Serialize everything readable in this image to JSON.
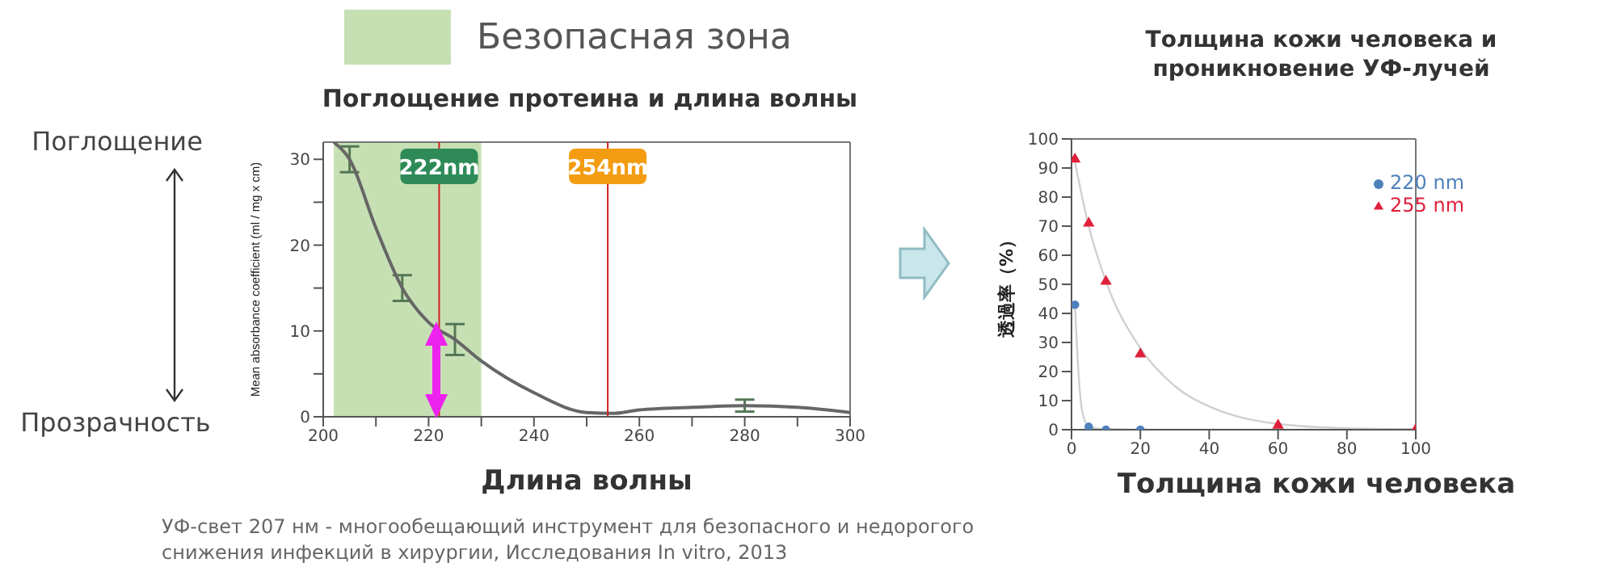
{
  "chart_data": [
    {
      "type": "line",
      "title": "Поглощение протеина и длина волны",
      "xlabel": "Длина волны",
      "ylabel": "Mean absorbance coefficient (ml / mg x cm)",
      "annotations": [
        "Поглощение",
        "Прозрачность",
        "УФ-свет 207 нм - многообещающий инструмент для безопасного и недорогого снижения инфекций в хирургии, Исследования  In vitro, 2013"
      ],
      "series": [
        {
          "color": "#666666",
          "x": [
            202,
            205,
            210,
            215,
            220,
            225,
            230,
            240,
            250,
            255,
            260,
            270,
            280,
            290,
            300
          ],
          "values": [
            32,
            30,
            22,
            15,
            11,
            9,
            6.5,
            2.8,
            0.5,
            0.4,
            0.8,
            1.1,
            1.3,
            1.1,
            0.5
          ],
          "errors": [
            null,
            1.5,
            null,
            1.5,
            null,
            1.8,
            null,
            null,
            null,
            null,
            null,
            null,
            0.7,
            null,
            null
          ]
        }
      ],
      "xlim": [
        200,
        300
      ],
      "xticks": [
        200,
        {
          "value": 210,
          "label": null
        },
        220,
        {
          "value": 230,
          "label": null
        },
        240,
        {
          "value": 250,
          "label": null
        },
        260,
        {
          "value": 270,
          "label": null
        },
        280,
        {
          "value": 290,
          "label": null
        },
        300
      ],
      "ylim": [
        0,
        32
      ],
      "yticks": [
        0,
        {
          "value": 5,
          "label": null
        },
        10,
        {
          "value": 15,
          "label": null
        },
        20,
        {
          "value": 25,
          "label": null
        },
        30
      ],
      "bands": [
        {
          "axis": "x",
          "from": 202,
          "to": 230,
          "label": "Безопасная зона",
          "color": "#c6e0b4"
        }
      ],
      "ref_lines": [
        {
          "axis": "x",
          "value": 222,
          "label": "222nm",
          "color": "#d02020"
        },
        {
          "axis": "x",
          "value": 254,
          "label": "254nm",
          "color": "#d02020"
        }
      ],
      "marker": "none",
      "grid": false
    },
    {
      "type": "scatter",
      "title": "Толщина кожи человека и проникновение УФ-лучей",
      "xlabel": "Толщина кожи человека",
      "ylabel": "透過率（%）",
      "x": [
        1,
        5,
        10,
        20,
        60,
        100
      ],
      "series": [
        {
          "name": "220 nm",
          "color": "#4f81bd",
          "marker": "circle",
          "values": [
            43,
            1,
            0,
            0,
            null,
            null
          ]
        },
        {
          "name": "255 nm",
          "color": "#e0203a",
          "marker": "triangle",
          "values": [
            93,
            71,
            51,
            26,
            1.5,
            0
          ]
        },
        {
          "type": "line",
          "color": "#d0d0d0",
          "marker": "none",
          "x": [
            1,
            2,
            3,
            5,
            10,
            20,
            40,
            90
          ],
          "values": [
            43,
            20,
            7,
            1,
            0.2,
            0,
            0,
            0
          ]
        },
        {
          "type": "line",
          "color": "#d0d0d0",
          "marker": "none",
          "x": [
            1,
            5,
            10,
            20,
            30,
            40,
            50,
            60,
            80,
            100
          ],
          "values": [
            92,
            70,
            51,
            28,
            15,
            8,
            4,
            2,
            0.5,
            0.2
          ]
        }
      ],
      "xlim": [
        0,
        100
      ],
      "xticks": [
        0,
        20,
        40,
        60,
        80,
        100
      ],
      "ylim": [
        0,
        100
      ],
      "yticks": [
        0,
        10,
        20,
        30,
        40,
        50,
        60,
        70,
        80,
        90,
        100
      ],
      "legend": "top right",
      "grid": false
    }
  ]
}
